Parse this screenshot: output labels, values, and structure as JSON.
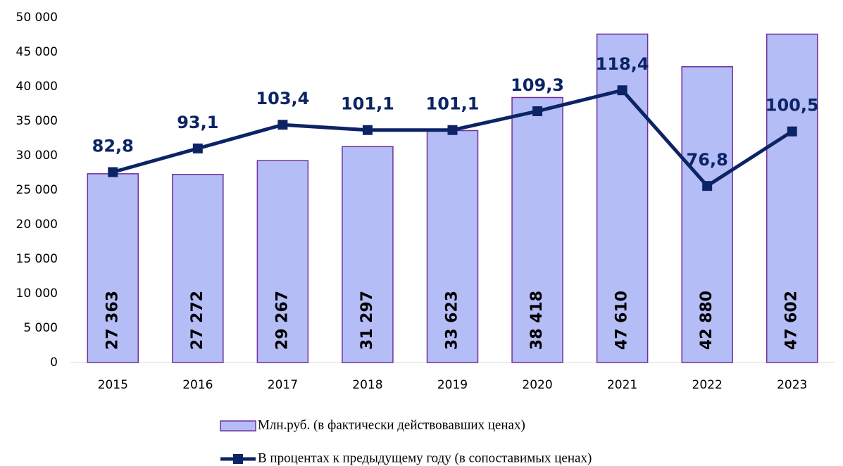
{
  "chart_data": {
    "type": "bar",
    "categories": [
      "2015",
      "2016",
      "2017",
      "2018",
      "2019",
      "2020",
      "2021",
      "2022",
      "2023"
    ],
    "series": [
      {
        "name": "Млн.руб. (в фактически действовавших ценах)",
        "type": "bar",
        "color": "#b4bdf5",
        "stroke": "#7030a0",
        "values": [
          27363,
          27272,
          29267,
          31297,
          33623,
          38418,
          47610,
          42880,
          47602
        ],
        "value_labels": [
          "27 363",
          "27 272",
          "29 267",
          "31 297",
          "33 623",
          "38 418",
          "47 610",
          "42 880",
          "47 602"
        ]
      },
      {
        "name": "В процентах к предыдущему году (в сопоставимых ценах)",
        "type": "line",
        "axis": "y2",
        "color": "#0c2466",
        "values": [
          82.8,
          93.1,
          103.4,
          101.1,
          101.1,
          109.3,
          118.4,
          76.8,
          100.5
        ],
        "value_labels": [
          "82,8",
          "93,1",
          "103,4",
          "101,1",
          "101,1",
          "109,3",
          "118,4",
          "76,8",
          "100,5"
        ]
      }
    ],
    "ylim": [
      0,
      50000
    ],
    "yticks": [
      0,
      {
        "value": 5000,
        "label": "5 000"
      },
      {
        "value": 10000,
        "label": "10 000"
      },
      {
        "value": 15000,
        "label": "15 000"
      },
      {
        "value": 20000,
        "label": "20 000"
      },
      {
        "value": 25000,
        "label": "25 000"
      },
      {
        "value": 30000,
        "label": "30 000"
      },
      {
        "value": 35000,
        "label": "35 000"
      },
      {
        "value": 40000,
        "label": "40 000"
      },
      {
        "value": 45000,
        "label": "45 000"
      },
      {
        "value": 50000,
        "label": "50 000"
      }
    ],
    "y2lim": [
      0,
      150
    ],
    "grid": false,
    "legend": "bottom"
  }
}
